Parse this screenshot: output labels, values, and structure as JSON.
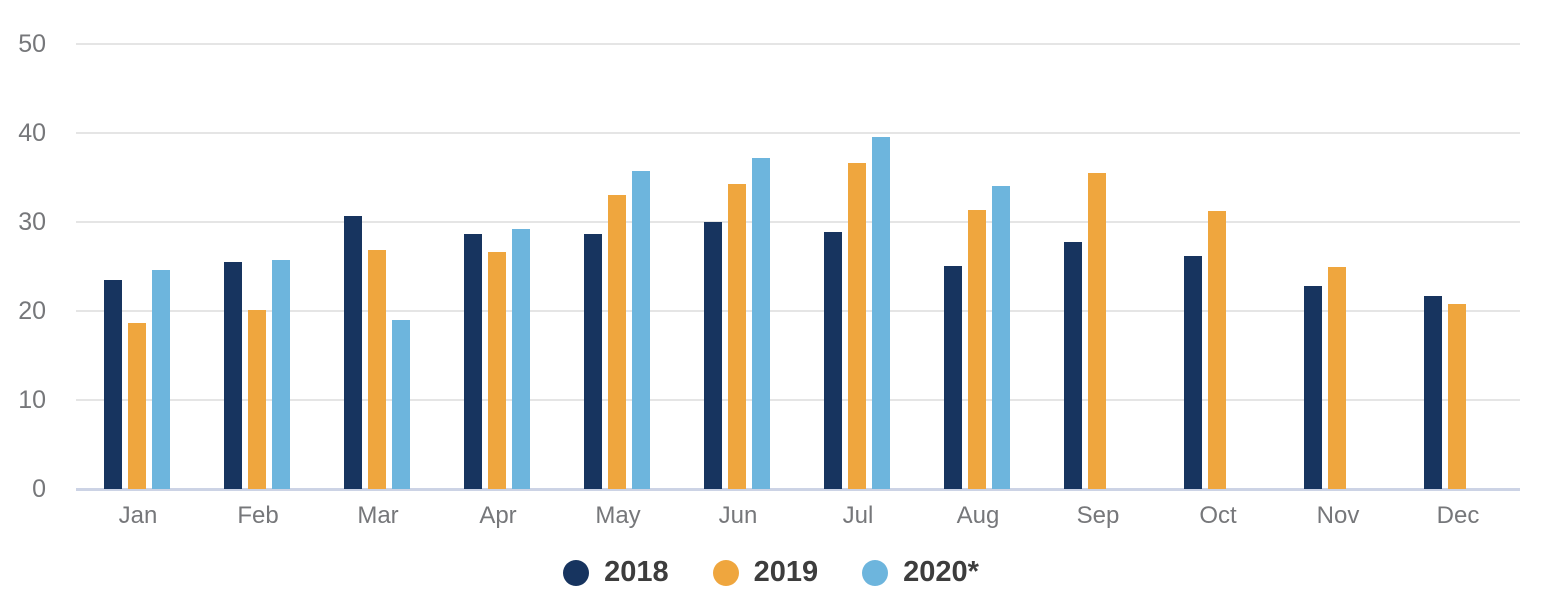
{
  "chart_data": {
    "type": "bar",
    "title": "",
    "xlabel": "",
    "ylabel": "",
    "categories": [
      "Jan",
      "Feb",
      "Mar",
      "Apr",
      "May",
      "Jun",
      "Jul",
      "Aug",
      "Sep",
      "Oct",
      "Nov",
      "Dec"
    ],
    "series": [
      {
        "name": "2018",
        "color": "#17345f",
        "values": [
          23.5,
          25.5,
          30.7,
          28.7,
          28.7,
          30.0,
          28.9,
          25.1,
          27.8,
          26.2,
          22.8,
          21.7
        ]
      },
      {
        "name": "2019",
        "color": "#efa63e",
        "values": [
          18.6,
          20.1,
          26.9,
          26.6,
          33.0,
          34.3,
          36.6,
          31.4,
          35.5,
          31.2,
          24.9,
          20.8
        ]
      },
      {
        "name": "2020*",
        "color": "#6db5dd",
        "values": [
          24.6,
          25.7,
          19.0,
          29.2,
          35.7,
          37.2,
          39.5,
          34.1,
          null,
          null,
          null,
          null
        ]
      }
    ],
    "ylim": [
      0,
      50
    ],
    "yticks": [
      0,
      10,
      20,
      30,
      40,
      50
    ],
    "grid": true,
    "legend_position": "bottom"
  },
  "styles": {
    "background": "#ffffff",
    "grid_color": "#e5e5e5",
    "baseline_color": "#ccd3e5",
    "axis_label_color": "#76777a",
    "legend_text_color": "#3d3d3d"
  }
}
